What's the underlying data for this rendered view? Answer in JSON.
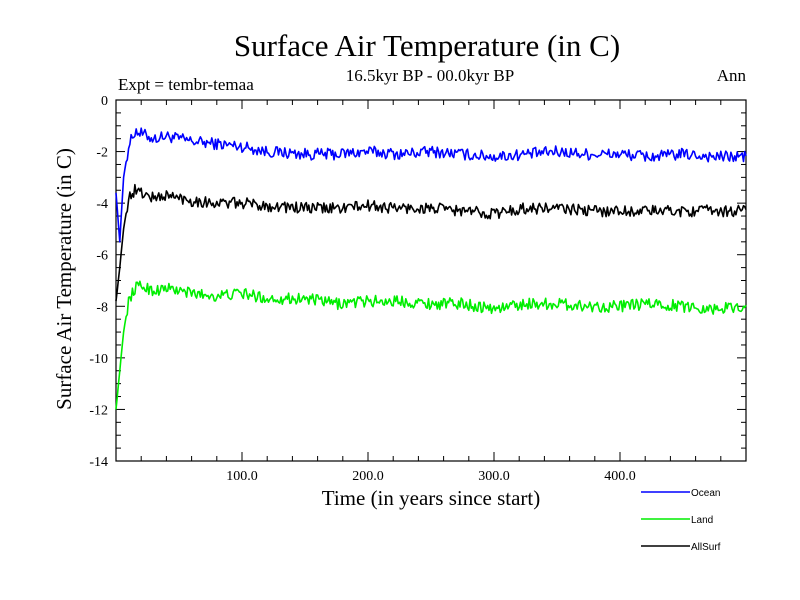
{
  "chart_data": {
    "type": "line",
    "title": "Surface Air Temperature (in C)",
    "subtitle": "16.5kyr BP - 00.0kyr BP",
    "left_label": "Expt = tembr-temaa",
    "right_label": "Ann",
    "xlabel": "Time (in years since start)",
    "ylabel": "Surface Air Temperature (in C)",
    "xlim": [
      0,
      500
    ],
    "ylim": [
      -14,
      0
    ],
    "x_ticks": [
      100,
      200,
      300,
      400
    ],
    "x_tick_labels": [
      "100.0",
      "200.0",
      "300.0",
      "400.0"
    ],
    "y_ticks": [
      0,
      -2,
      -4,
      -6,
      -8,
      -10,
      -12,
      -14
    ],
    "y_tick_labels": [
      "0",
      "-2",
      "-4",
      "-6",
      "-8",
      "-10",
      "-12",
      "-14"
    ],
    "legend_position": "bottom-right",
    "series": [
      {
        "name": "Ocean",
        "color": "#0000ff",
        "x": [
          0,
          3,
          6,
          10,
          15,
          20,
          30,
          40,
          60,
          80,
          100,
          120,
          150,
          175,
          200,
          225,
          250,
          275,
          300,
          325,
          350,
          375,
          400,
          425,
          450,
          475,
          500
        ],
        "values": [
          -3.6,
          -5.5,
          -3.0,
          -1.8,
          -1.2,
          -1.3,
          -1.5,
          -1.4,
          -1.6,
          -1.7,
          -1.8,
          -2.0,
          -2.1,
          -2.1,
          -2.0,
          -2.1,
          -2.0,
          -2.1,
          -2.2,
          -2.1,
          -2.0,
          -2.1,
          -2.1,
          -2.2,
          -2.1,
          -2.2,
          -2.2
        ]
      },
      {
        "name": "Land",
        "color": "#00ee00",
        "x": [
          0,
          3,
          6,
          10,
          15,
          20,
          30,
          40,
          60,
          80,
          100,
          120,
          150,
          175,
          200,
          225,
          250,
          275,
          300,
          325,
          350,
          375,
          400,
          425,
          450,
          475,
          500
        ],
        "values": [
          -12.0,
          -10.5,
          -9.0,
          -7.8,
          -7.3,
          -7.2,
          -7.4,
          -7.3,
          -7.5,
          -7.6,
          -7.5,
          -7.7,
          -7.7,
          -7.9,
          -7.8,
          -7.8,
          -7.9,
          -7.9,
          -8.1,
          -7.9,
          -7.9,
          -8.0,
          -8.0,
          -7.9,
          -8.0,
          -8.1,
          -8.0
        ]
      },
      {
        "name": "AllSurf",
        "color": "#000000",
        "x": [
          0,
          3,
          6,
          10,
          15,
          20,
          30,
          40,
          60,
          80,
          100,
          120,
          150,
          175,
          200,
          225,
          250,
          275,
          300,
          325,
          350,
          375,
          400,
          425,
          450,
          475,
          500
        ],
        "values": [
          -7.8,
          -6.5,
          -5.0,
          -3.8,
          -3.5,
          -3.6,
          -3.8,
          -3.7,
          -3.9,
          -4.0,
          -4.0,
          -4.1,
          -4.2,
          -4.2,
          -4.1,
          -4.2,
          -4.2,
          -4.3,
          -4.4,
          -4.2,
          -4.2,
          -4.3,
          -4.3,
          -4.3,
          -4.3,
          -4.3,
          -4.3
        ]
      }
    ]
  }
}
